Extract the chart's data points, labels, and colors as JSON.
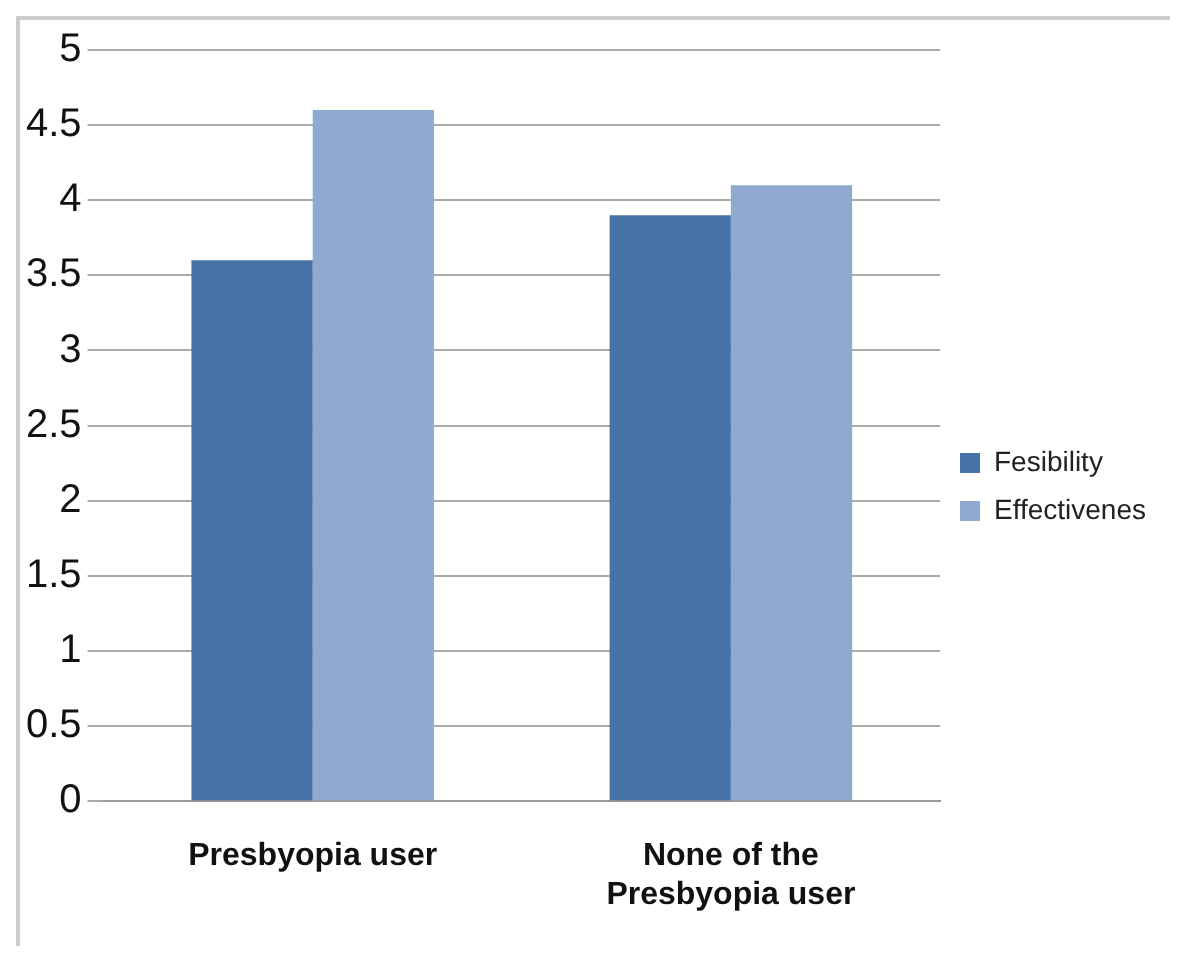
{
  "chart_data": {
    "type": "bar",
    "categories": [
      "Presbyopia user",
      "None of the Presbyopia user"
    ],
    "series": [
      {
        "name": "Fesibility",
        "color": "#4572a7",
        "values": [
          3.6,
          3.9
        ]
      },
      {
        "name": "Effectivenes",
        "color": "#8fa9d1",
        "values": [
          4.6,
          4.1
        ]
      }
    ],
    "ylim": [
      0,
      5
    ],
    "yticks": [
      0,
      0.5,
      1,
      1.5,
      2,
      2.5,
      3,
      3.5,
      4,
      4.5,
      5
    ],
    "grid": "y",
    "legend": "right"
  }
}
